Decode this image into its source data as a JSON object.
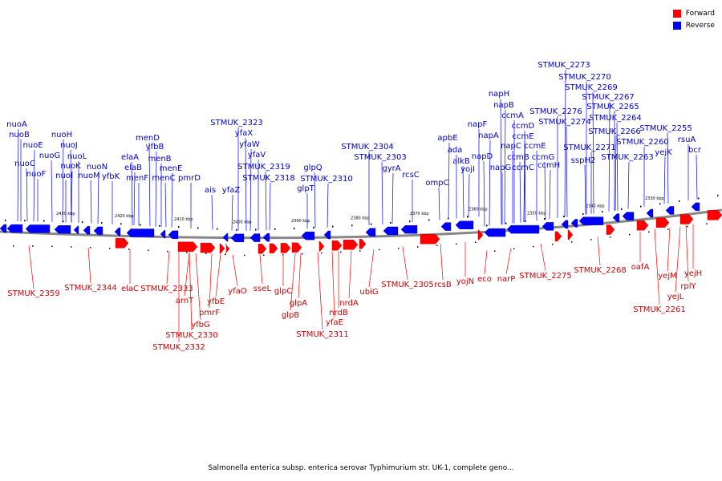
{
  "legend": [
    {
      "label": "Forward",
      "color": "#ff0000"
    },
    {
      "label": "Reverse",
      "color": "#0000ff"
    }
  ],
  "caption": "Salmonella enterica subsp. enterica serovar Typhimurium str. UK-1, complete geno...",
  "colors": {
    "forward": "#ff0000",
    "reverse": "#0000ff",
    "forward_label": "#cc0000",
    "reverse_label": "#0000cc",
    "backbone": "#888888"
  },
  "scale_labels": [
    "2430 kbp",
    "2420 kbp",
    "2410 kbp",
    "2400 kbp",
    "2390 kbp",
    "2380 kbp",
    "2370 kbp",
    "2360 kbp",
    "2350 kbp",
    "2340 kbp",
    "2330 kbp"
  ],
  "reverse_genes": [
    "nuoA",
    "nuoB",
    "nuoC",
    "nuoE",
    "nuoF",
    "nuoG",
    "nuoH",
    "nuoI",
    "nuoJ",
    "nuoK",
    "nuoL",
    "nuoM",
    "nuoN",
    "yfbK",
    "elaA",
    "elaB",
    "menF",
    "menD",
    "yfbB",
    "menB",
    "menC",
    "menE",
    "pmrD",
    "ais",
    "yfaZ",
    "STMUK_2323",
    "yfaX",
    "yfaW",
    "yfaV",
    "STMUK_2319",
    "STMUK_2318",
    "glpT",
    "glpQ",
    "STMUK_2310",
    "STMUK_2304",
    "STMUK_2303",
    "gyrA",
    "rcsC",
    "ompC",
    "apbE",
    "ada",
    "alkB",
    "yojI",
    "napF",
    "napD",
    "napA",
    "napG",
    "napH",
    "napB",
    "ccmA",
    "ccmD",
    "ccmE",
    "napC",
    "ccmB",
    "ccmC",
    "ccmE",
    "ccmG",
    "ccmH",
    "STMUK_2276",
    "STMUK_2274",
    "STMUK_2273",
    "STMUK_2270",
    "STMUK_2269",
    "STMUK_2267",
    "STMUK_2271",
    "sspH2",
    "STMUK_2266",
    "STMUK_2265",
    "STMUK_2264",
    "STMUK_2263",
    "STMUK_2260",
    "STMUK_2255",
    "yejK",
    "rsuA",
    "bcr"
  ],
  "forward_genes": [
    "STMUK_2359",
    "STMUK_2344",
    "elaC",
    "STMUK_2333",
    "arnT",
    "yfbG",
    "STMUK_2330",
    "STMUK_2332",
    "pmrF",
    "yfbE",
    "yfaO",
    "sseL",
    "glpC",
    "glpA",
    "glpB",
    "STMUK_2311",
    "yfaE",
    "nrdB",
    "nrdA",
    "ubiG",
    "STMUK_2305",
    "rcsB",
    "yojN",
    "eco",
    "narP",
    "STMUK_2275",
    "STMUK_2268",
    "oafA",
    "yejM",
    "yejL",
    "STMUK_2261",
    "rplY",
    "yejH"
  ]
}
